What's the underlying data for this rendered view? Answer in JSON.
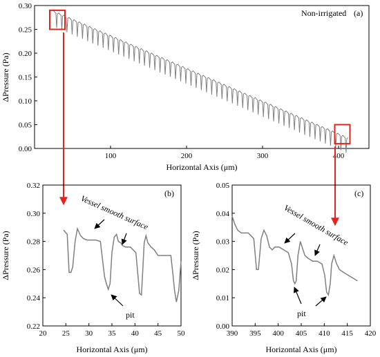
{
  "chart_data": [
    {
      "id": "a",
      "type": "line",
      "panel_label": "(a)",
      "legend_text": "Non-irrigated",
      "xlabel": "Horizontal Axis (μm)",
      "ylabel": "ΔPressure (Pa)",
      "xlim": [
        0,
        440
      ],
      "ylim": [
        0,
        0.3
      ],
      "xticks": [
        "100",
        "200",
        "300",
        "400"
      ],
      "yticks": [
        "0.00",
        "0.05",
        "0.10",
        "0.15",
        "0.20",
        "0.25",
        "0.30"
      ],
      "ytick_values": [
        0,
        0.05,
        0.1,
        0.15,
        0.2,
        0.25,
        0.3
      ],
      "xtick_values": [
        100,
        200,
        300,
        400
      ],
      "trend": {
        "x": [
          25,
          415
        ],
        "y": [
          0.286,
          0.018
        ]
      },
      "pit_spacing": 6.8,
      "pit_depth": 0.03,
      "highlight_boxes": [
        {
          "x": [
            20,
            40
          ],
          "y": [
            0.25,
            0.29
          ]
        },
        {
          "x": [
            395,
            415
          ],
          "y": [
            0.01,
            0.05
          ]
        }
      ]
    },
    {
      "id": "b",
      "type": "line",
      "panel_label": "(b)",
      "xlabel": "Horizontal Axis (μm)",
      "ylabel": "ΔPressure (Pa)",
      "xlim": [
        20,
        50
      ],
      "ylim": [
        0.22,
        0.32
      ],
      "xticks": [
        "20",
        "25",
        "30",
        "35",
        "40",
        "45",
        "50"
      ],
      "xtick_values": [
        20,
        25,
        30,
        35,
        40,
        45,
        50
      ],
      "yticks": [
        "0.22",
        "0.24",
        "0.26",
        "0.28",
        "0.30",
        "0.32"
      ],
      "ytick_values": [
        0.22,
        0.24,
        0.26,
        0.28,
        0.3,
        0.32
      ],
      "x": [
        24.5,
        25.3,
        25.7,
        26.1,
        26.5,
        27.0,
        27.5,
        28.2,
        28.8,
        29.6,
        30.5,
        31.5,
        32.5,
        33.4,
        33.8,
        34.2,
        34.6,
        35.0,
        35.5,
        36.0,
        36.4,
        36.9,
        37.3,
        38.0,
        39.0,
        40.2,
        41.0,
        41.4,
        41.7,
        42.0,
        42.4,
        42.8,
        43.5,
        44.2,
        45.0,
        46.0,
        47.0,
        47.8,
        48.2,
        48.6,
        49.0,
        49.5,
        50.0
      ],
      "y": [
        0.288,
        0.285,
        0.258,
        0.258,
        0.262,
        0.28,
        0.289,
        0.284,
        0.282,
        0.281,
        0.281,
        0.281,
        0.28,
        0.255,
        0.25,
        0.246,
        0.25,
        0.272,
        0.283,
        0.285,
        0.28,
        0.279,
        0.277,
        0.276,
        0.276,
        0.272,
        0.243,
        0.242,
        0.26,
        0.279,
        0.284,
        0.279,
        0.276,
        0.274,
        0.27,
        0.27,
        0.27,
        0.27,
        0.258,
        0.245,
        0.237,
        0.245,
        0.266
      ]
    },
    {
      "id": "c",
      "type": "line",
      "panel_label": "(c)",
      "xlabel": "Horizontal Axis (μm)",
      "ylabel": "ΔPressure (Pa)",
      "xlim": [
        390,
        420
      ],
      "ylim": [
        0.0,
        0.05
      ],
      "xticks": [
        "390",
        "395",
        "400",
        "405",
        "410",
        "415",
        "420"
      ],
      "xtick_values": [
        390,
        395,
        400,
        405,
        410,
        415,
        420
      ],
      "yticks": [
        "0.00",
        "0.01",
        "0.02",
        "0.03",
        "0.04",
        "0.05"
      ],
      "ytick_values": [
        0,
        0.01,
        0.02,
        0.03,
        0.04,
        0.05
      ],
      "x": [
        390.0,
        390.6,
        391.2,
        392.0,
        393.5,
        394.7,
        395.3,
        395.7,
        396.3,
        396.9,
        397.5,
        398.1,
        398.7,
        399.3,
        400.2,
        401.2,
        402.2,
        402.9,
        403.3,
        403.6,
        403.9,
        404.3,
        404.8,
        405.2,
        405.8,
        406.5,
        407.5,
        408.5,
        409.5,
        410.1,
        410.5,
        410.9,
        411.3,
        411.6,
        412.1,
        412.7,
        413.3,
        414.2,
        415.2,
        416.2,
        417.2
      ],
      "y": [
        0.039,
        0.036,
        0.034,
        0.033,
        0.033,
        0.031,
        0.02,
        0.02,
        0.031,
        0.034,
        0.032,
        0.028,
        0.027,
        0.028,
        0.028,
        0.027,
        0.026,
        0.022,
        0.016,
        0.015,
        0.016,
        0.025,
        0.03,
        0.028,
        0.025,
        0.024,
        0.023,
        0.023,
        0.022,
        0.018,
        0.012,
        0.011,
        0.015,
        0.022,
        0.025,
        0.022,
        0.02,
        0.019,
        0.018,
        0.017,
        0.016
      ]
    }
  ],
  "annotations": {
    "b": {
      "surface": "Vessel smooth surface",
      "pit": "pit"
    },
    "c": {
      "surface": "Vessel smooth surface",
      "pit": "pit"
    }
  },
  "colors": {
    "line": "#7f7f7f",
    "highlight": "#e8221b"
  }
}
